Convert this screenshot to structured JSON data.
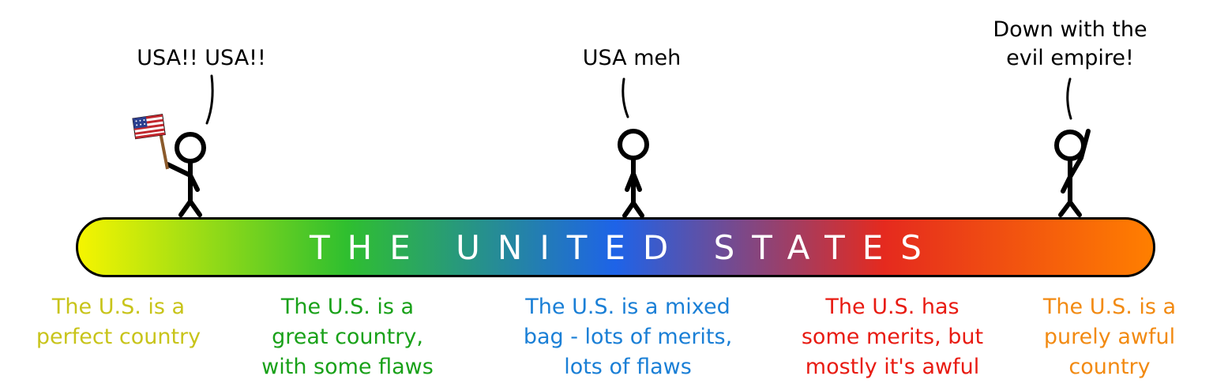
{
  "speech": {
    "left": "USA!! USA!!",
    "middle": "USA meh",
    "right": "Down with the\nevil empire!"
  },
  "bar": {
    "label": "THE UNITED STATES",
    "gradient_colors": [
      "#f6f500",
      "#2fbf2f",
      "#1e63e8",
      "#e52a1e",
      "#ff7f00"
    ]
  },
  "captions": [
    {
      "text": "The U.S. is a\nperfect country",
      "color": "#c8c41a"
    },
    {
      "text": "The U.S. is a\ngreat country,\nwith some flaws",
      "color": "#19a119"
    },
    {
      "text": "The U.S. is a mixed\nbag - lots of merits,\nlots of flaws",
      "color": "#1a7fd6"
    },
    {
      "text": "The U.S. has\nsome merits, but\nmostly it's awful",
      "color": "#e81b12"
    },
    {
      "text": "The U.S. is a\npurely awful\ncountry",
      "color": "#f28a12"
    }
  ],
  "flag_colors": {
    "stripe_red": "#c0272d",
    "canton_blue": "#2a3f8f",
    "pole": "#8b5a2b"
  }
}
